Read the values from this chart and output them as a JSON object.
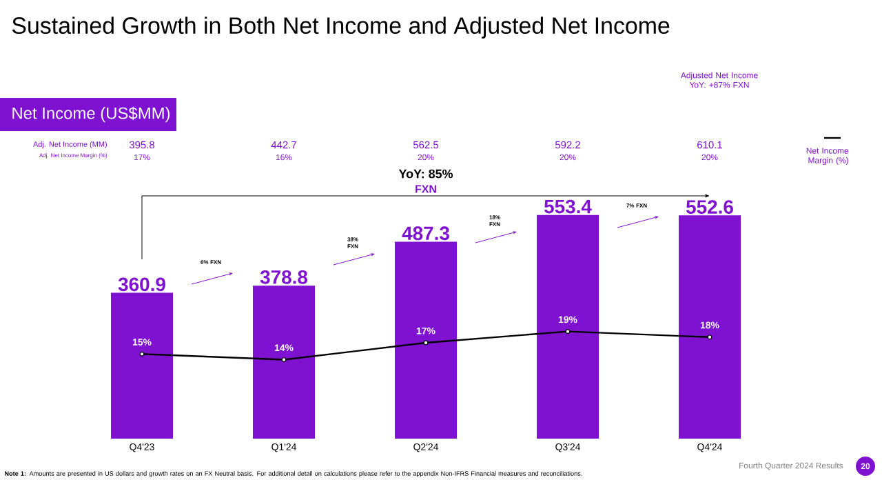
{
  "chart_data": {
    "type": "bar",
    "title": "Sustained Growth in Both Net Income and Adjusted Net Income",
    "subtitle": "Net Income (US$MM)",
    "categories": [
      "Q4'23",
      "Q1'24",
      "Q2'24",
      "Q3'24",
      "Q4'24"
    ],
    "series": [
      {
        "color": "#7f12d1",
        "values": [
          360.9,
          378.8,
          487.3,
          553.4,
          552.6
        ]
      },
      {
        "type": "line",
        "name": "Net Income Margin (%)",
        "axis": "y2",
        "color": "#000000",
        "marker": "circle",
        "values": [
          15,
          14,
          17,
          19,
          18
        ],
        "value_labels": [
          "15%",
          "14%",
          "17%",
          "19%",
          "18%"
        ]
      }
    ],
    "tick_labels": "x",
    "data_labels": true,
    "legend": "right",
    "grid": false,
    "annotations": [
      "Adj. Net Income (MM)",
      "Adj. Net Income Margin (%)",
      "395.8",
      "442.7",
      "562.5",
      "592.2",
      "610.1",
      "17%",
      "16%",
      "20%",
      "20%",
      "20%",
      "Adjusted Net Income YoY: +87% FXN",
      "YoY: 85%",
      "FXN",
      "6% FXN",
      "38% FXN",
      "18% FXN",
      "7% FXN",
      "**Note 1:** Amounts are presented in US dollars and growth rates on an FX Neutral basis. For additional detail on calculations please refer to the appendix Non-IFRS Financial measures and reconciliations.",
      "Fourth Quarter 2024 Results",
      "20"
    ]
  }
}
